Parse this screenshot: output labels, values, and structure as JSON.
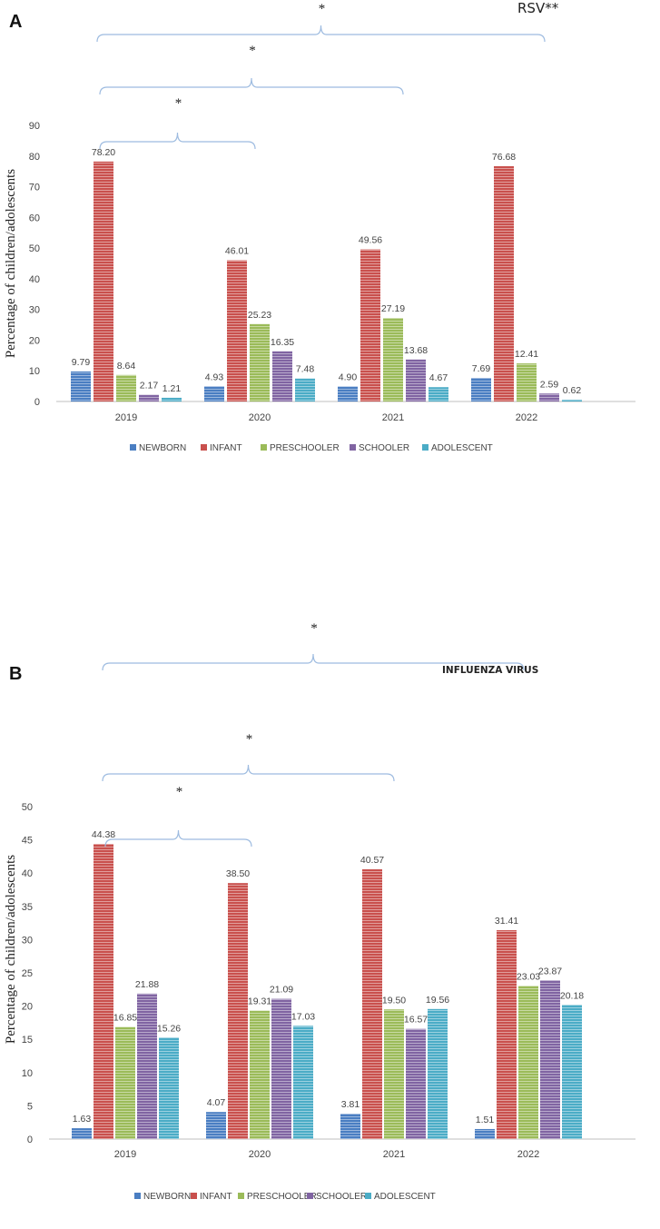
{
  "chart_data": [
    {
      "panel": "A",
      "type": "bar",
      "title": "RSV**",
      "ylabel": "Percentage of children/adolescents",
      "xlabel": "",
      "ylim": [
        0,
        90
      ],
      "yticks": [
        0,
        10,
        20,
        30,
        40,
        50,
        60,
        70,
        80,
        90
      ],
      "categories": [
        "2019",
        "2020",
        "2021",
        "2022"
      ],
      "series": [
        {
          "name": "NEWBORN",
          "color": "#4a7ec2",
          "values": [
            9.79,
            4.93,
            4.9,
            7.69
          ],
          "labels": [
            "9.79",
            "4.93",
            "4.90",
            "7.69"
          ]
        },
        {
          "name": "INFANT",
          "color": "#c9504d",
          "values": [
            78.2,
            46.01,
            49.56,
            76.68
          ],
          "labels": [
            "78.20",
            "46.01",
            "49.56",
            "76.68"
          ]
        },
        {
          "name": "PRESCHOOLER",
          "color": "#9bbb59",
          "values": [
            8.64,
            25.23,
            27.19,
            12.41
          ],
          "labels": [
            "8.64",
            "25.23",
            "27.19",
            "12.41"
          ]
        },
        {
          "name": "SCHOOLER",
          "color": "#8064a2",
          "values": [
            2.17,
            16.35,
            13.68,
            2.59
          ],
          "labels": [
            "2.17",
            "16.35",
            "13.68",
            "2.59"
          ]
        },
        {
          "name": "ADOLESCENT",
          "color": "#4bacc6",
          "values": [
            1.21,
            7.48,
            4.67,
            0.62
          ],
          "labels": [
            "1.21",
            "7.48",
            "4.67",
            "0.62"
          ]
        }
      ],
      "annotations": [
        {
          "from": "2019",
          "to": "2022",
          "text": "*"
        },
        {
          "from": "2019",
          "to": "2021",
          "text": "*"
        },
        {
          "from": "2019",
          "to": "2020",
          "text": "*"
        }
      ]
    },
    {
      "panel": "B",
      "type": "bar",
      "title": "INFLUENZA VIRUS",
      "ylabel": "Percentage of children/adolescents",
      "xlabel": "",
      "ylim": [
        0,
        50
      ],
      "yticks": [
        0,
        5,
        10,
        15,
        20,
        25,
        30,
        35,
        40,
        45,
        50
      ],
      "categories": [
        "2019",
        "2020",
        "2021",
        "2022"
      ],
      "series": [
        {
          "name": "NEWBORN",
          "color": "#4a7ec2",
          "values": [
            1.63,
            4.07,
            3.81,
            1.51
          ],
          "labels": [
            "1.63",
            "4.07",
            "3.81",
            "1.51"
          ]
        },
        {
          "name": "INFANT",
          "color": "#c9504d",
          "values": [
            44.38,
            38.5,
            40.57,
            31.41
          ],
          "labels": [
            "44.38",
            "38.50",
            "40.57",
            "31.41"
          ]
        },
        {
          "name": "PRESCHOOLER",
          "color": "#9bbb59",
          "values": [
            16.85,
            19.31,
            19.5,
            23.03
          ],
          "labels": [
            "16.85",
            "19.31",
            "19.50",
            "23.03"
          ]
        },
        {
          "name": "SCHOOLER",
          "color": "#8064a2",
          "values": [
            21.88,
            21.09,
            16.57,
            23.87
          ],
          "labels": [
            "21.88",
            "21.09",
            "16.57",
            "23.87"
          ]
        },
        {
          "name": "ADOLESCENT",
          "color": "#4bacc6",
          "values": [
            15.26,
            17.03,
            19.56,
            20.18
          ],
          "labels": [
            "15.26",
            "17.03",
            "19.56",
            "20.18"
          ]
        }
      ],
      "annotations": [
        {
          "from": "2019",
          "to": "2022",
          "text": "*"
        },
        {
          "from": "2019",
          "to": "2021",
          "text": "*"
        },
        {
          "from": "2019",
          "to": "2020",
          "text": "*"
        }
      ]
    }
  ]
}
